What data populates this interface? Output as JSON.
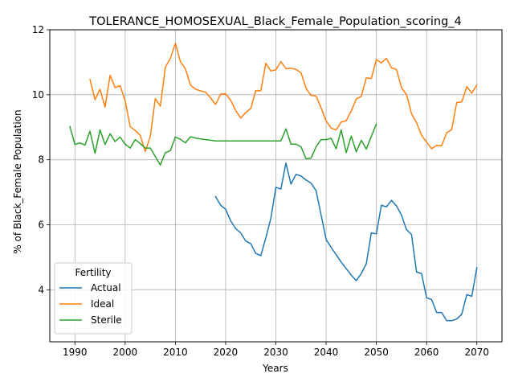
{
  "chart_data": {
    "type": "line",
    "title": "TOLERANCE_HOMOSEXUAL_Black_Female_Population_scoring_4",
    "xlabel": "Years",
    "ylabel": "% of Black_Female Population",
    "xlim": [
      1985,
      2075
    ],
    "ylim": [
      2.4,
      12.0
    ],
    "xticks": [
      1990,
      2000,
      2010,
      2020,
      2030,
      2040,
      2050,
      2060,
      2070
    ],
    "yticks": [
      4,
      6,
      8,
      10,
      12
    ],
    "grid": true,
    "legend": {
      "title": "Fertility",
      "placement": "lower-left"
    },
    "series": [
      {
        "name": "Actual",
        "color": "#1f77b4",
        "x": [
          2018,
          2019,
          2020,
          2021,
          2022,
          2023,
          2024,
          2025,
          2026,
          2027,
          2028,
          2029,
          2030,
          2031,
          2032,
          2033,
          2034,
          2035,
          2036,
          2037,
          2038,
          2039,
          2040,
          2041,
          2042,
          2043,
          2044,
          2045,
          2046,
          2047,
          2048,
          2049,
          2050,
          2051,
          2052,
          2053,
          2054,
          2055,
          2056,
          2057,
          2058,
          2059,
          2060,
          2061,
          2062,
          2063,
          2064,
          2065,
          2066,
          2067,
          2068,
          2069,
          2070
        ],
        "y": [
          6.87,
          6.6,
          6.48,
          6.12,
          5.88,
          5.75,
          5.5,
          5.42,
          5.12,
          5.05,
          5.6,
          6.2,
          7.15,
          7.1,
          7.9,
          7.25,
          7.55,
          7.5,
          7.38,
          7.28,
          7.05,
          6.3,
          5.55,
          5.3,
          5.08,
          4.85,
          4.65,
          4.45,
          4.28,
          4.5,
          4.8,
          5.75,
          5.72,
          6.6,
          6.55,
          6.75,
          6.58,
          6.3,
          5.85,
          5.7,
          4.55,
          4.5,
          3.75,
          3.7,
          3.3,
          3.3,
          3.05,
          3.05,
          3.1,
          3.25,
          3.85,
          3.8,
          4.68
        ]
      },
      {
        "name": "Ideal",
        "color": "#ff7f0e",
        "x": [
          1993,
          1994,
          1995,
          1996,
          1997,
          1998,
          1999,
          2000,
          2001,
          2002,
          2003,
          2004,
          2005,
          2006,
          2007,
          2008,
          2009,
          2010,
          2011,
          2012,
          2013,
          2014,
          2015,
          2016,
          2017,
          2018,
          2019,
          2020,
          2021,
          2022,
          2023,
          2024,
          2025,
          2026,
          2027,
          2028,
          2029,
          2030,
          2031,
          2032,
          2033,
          2034,
          2035,
          2036,
          2037,
          2038,
          2039,
          2040,
          2041,
          2042,
          2043,
          2044,
          2045,
          2046,
          2047,
          2048,
          2049,
          2050,
          2051,
          2052,
          2053,
          2054,
          2055,
          2056,
          2057,
          2058,
          2059,
          2060,
          2061,
          2062,
          2063,
          2064,
          2065,
          2066,
          2067,
          2068,
          2069,
          2070
        ],
        "y": [
          10.47,
          9.85,
          10.17,
          9.62,
          10.6,
          10.22,
          10.28,
          9.82,
          9.02,
          8.9,
          8.75,
          8.25,
          8.72,
          9.88,
          9.65,
          10.85,
          11.12,
          11.58,
          11.02,
          10.8,
          10.3,
          10.17,
          10.12,
          10.08,
          9.9,
          9.7,
          10.02,
          10.03,
          9.83,
          9.52,
          9.28,
          9.45,
          9.58,
          10.13,
          10.12,
          10.97,
          10.73,
          10.77,
          11.02,
          10.8,
          10.82,
          10.78,
          10.68,
          10.2,
          9.98,
          9.96,
          9.6,
          9.2,
          8.97,
          8.92,
          9.16,
          9.2,
          9.5,
          9.87,
          9.95,
          10.52,
          10.5,
          11.08,
          10.98,
          11.12,
          10.83,
          10.78,
          10.22,
          10.0,
          9.42,
          9.14,
          8.75,
          8.54,
          8.34,
          8.44,
          8.43,
          8.83,
          8.93,
          9.76,
          9.78,
          10.25,
          10.05,
          10.3
        ]
      },
      {
        "name": "Sterile",
        "color": "#2ca02c",
        "x": [
          1989,
          1990,
          1991,
          1992,
          1993,
          1994,
          1995,
          1996,
          1997,
          1998,
          1999,
          2000,
          2001,
          2002,
          2003,
          2004,
          2005,
          2006,
          2007,
          2008,
          2009,
          2010,
          2011,
          2012,
          2013,
          2014,
          2015,
          2016,
          2017,
          2018,
          2019,
          2020,
          2021,
          2022,
          2023,
          2024,
          2025,
          2026,
          2027,
          2028,
          2029,
          2030,
          2031,
          2032,
          2033,
          2034,
          2035,
          2036,
          2037,
          2038,
          2039,
          2040,
          2041,
          2042,
          2043,
          2044,
          2045,
          2046,
          2047,
          2048,
          2049,
          2050
        ],
        "y": [
          9.02,
          8.47,
          8.52,
          8.45,
          8.88,
          8.2,
          8.92,
          8.47,
          8.8,
          8.56,
          8.7,
          8.48,
          8.36,
          8.62,
          8.5,
          8.36,
          8.36,
          8.1,
          7.84,
          8.22,
          8.28,
          8.7,
          8.63,
          8.52,
          8.71,
          8.67,
          8.64,
          8.62,
          8.6,
          8.58,
          8.58,
          8.58,
          8.58,
          8.58,
          8.58,
          8.58,
          8.58,
          8.58,
          8.58,
          8.58,
          8.58,
          8.58,
          8.58,
          8.95,
          8.48,
          8.48,
          8.4,
          8.03,
          8.05,
          8.4,
          8.62,
          8.62,
          8.66,
          8.34,
          8.92,
          8.22,
          8.73,
          8.24,
          8.6,
          8.33,
          8.72,
          9.1
        ]
      }
    ]
  }
}
